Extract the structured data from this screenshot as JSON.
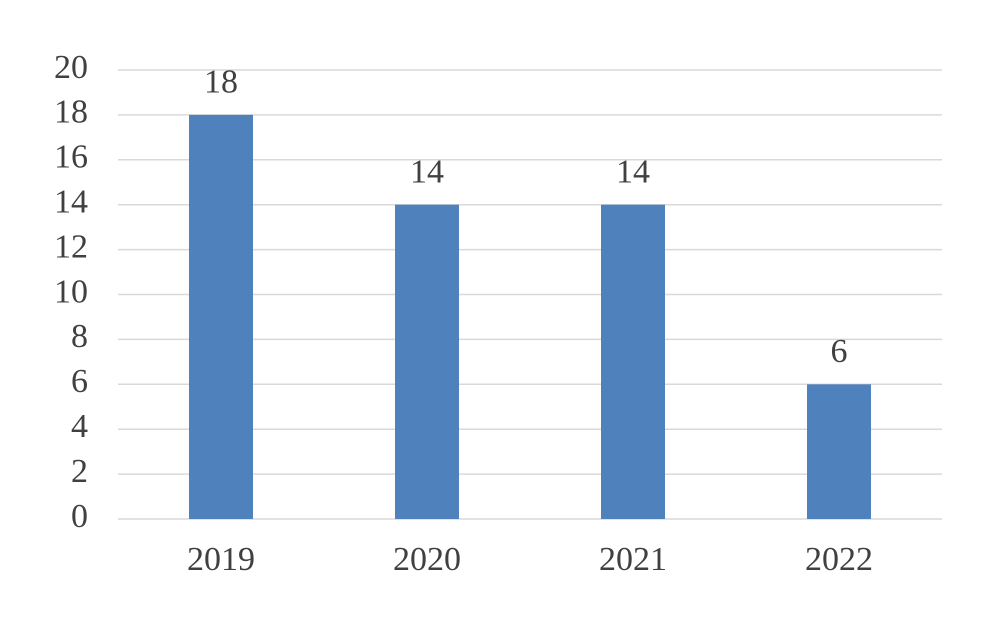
{
  "chart_data": {
    "type": "bar",
    "categories": [
      "2019",
      "2020",
      "2021",
      "2022"
    ],
    "values": [
      18,
      14,
      14,
      6
    ],
    "color": "#4f81bd",
    "ylim": [
      0,
      20
    ],
    "yticks": [
      0,
      2,
      4,
      6,
      8,
      10,
      12,
      14,
      16,
      18,
      20
    ],
    "grid": true,
    "data_labels": true
  }
}
